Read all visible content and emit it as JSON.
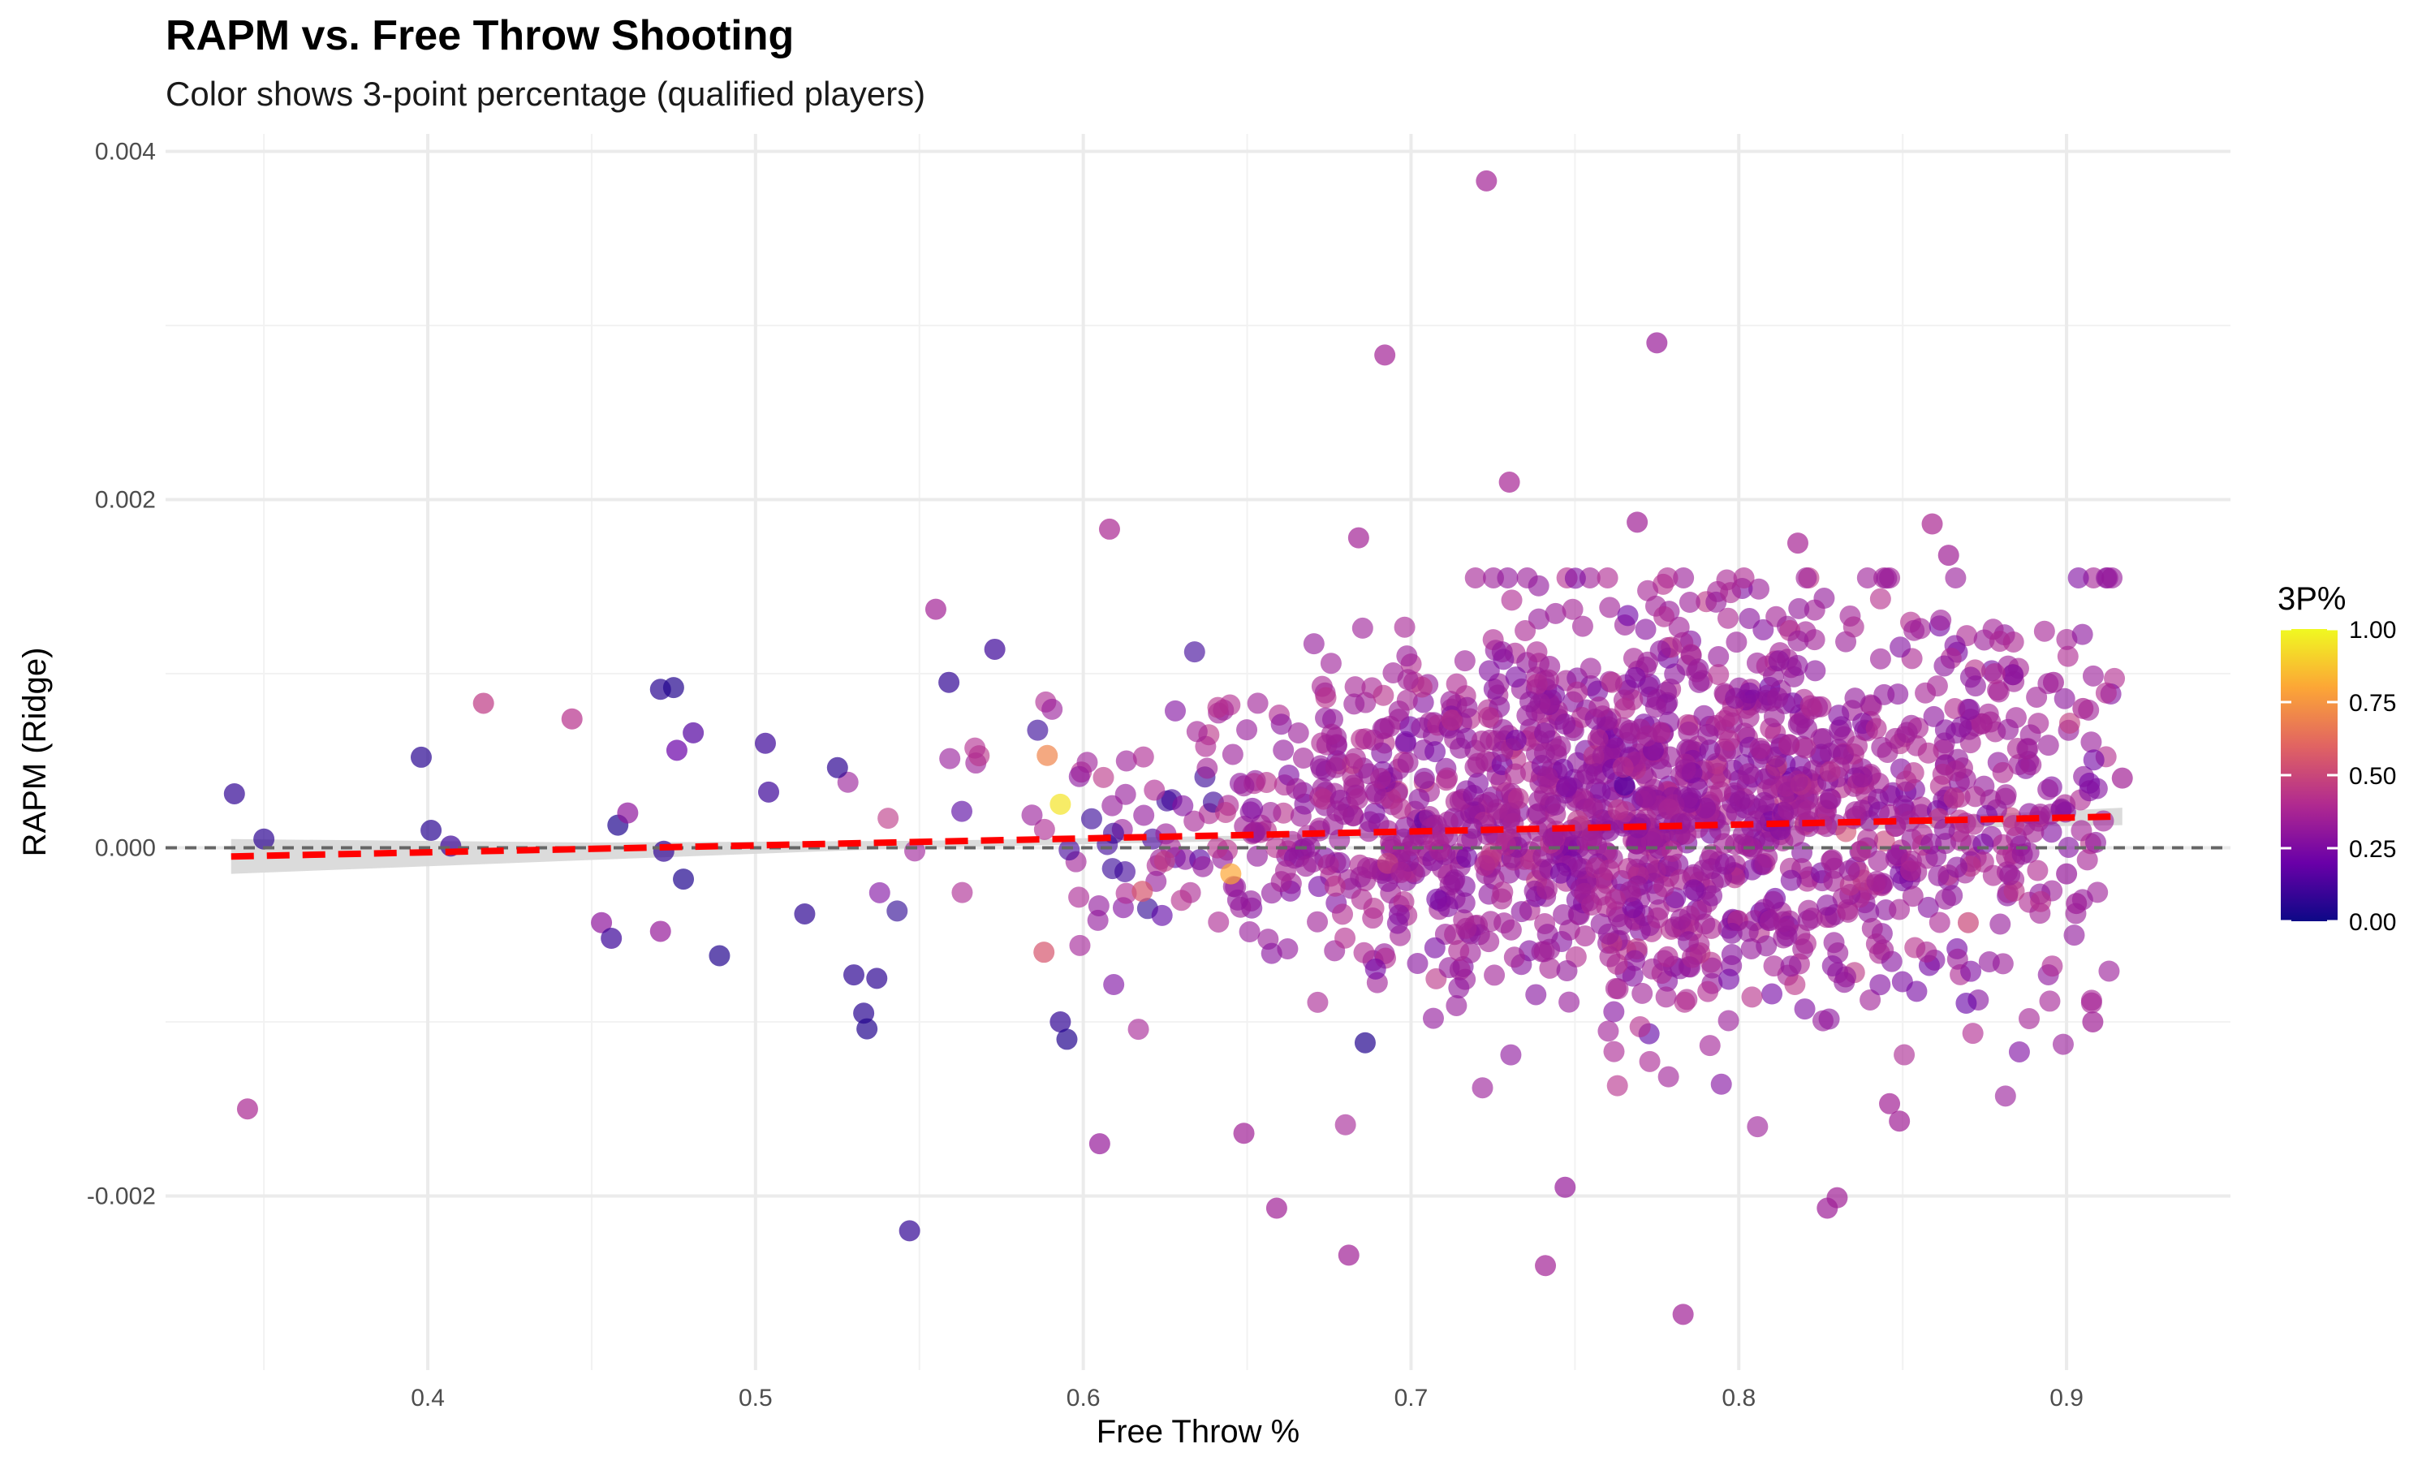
{
  "chart_data": {
    "type": "scatter",
    "title": "RAPM vs. Free Throw Shooting",
    "subtitle": "Color shows 3-point percentage (qualified players)",
    "xlabel": "Free Throw %",
    "ylabel": "RAPM (Ridge)",
    "xlim": [
      0.32,
      0.95
    ],
    "ylim": [
      -0.003,
      0.0041
    ],
    "x_ticks": [
      0.4,
      0.5,
      0.6,
      0.7,
      0.8,
      0.9
    ],
    "x_tick_labels": [
      "0.4",
      "0.5",
      "0.6",
      "0.7",
      "0.8",
      "0.9"
    ],
    "y_ticks": [
      -0.002,
      0.0,
      0.002,
      0.004
    ],
    "y_tick_labels": [
      "-0.002",
      "0.000",
      "0.002",
      "0.004"
    ],
    "grid": true,
    "reference_line": {
      "y": 0.0,
      "style": "dashed",
      "color": "#666666"
    },
    "trend_line": {
      "x": [
        0.34,
        0.917
      ],
      "y": [
        -5e-05,
        0.00018
      ],
      "style": "dashed",
      "color": "#ff0000"
    },
    "confidence_band": {
      "x": [
        0.34,
        0.45,
        0.55,
        0.65,
        0.75,
        0.85,
        0.917
      ],
      "lower": [
        -0.00015,
        -7e-05,
        0.0,
        4e-05,
        8e-05,
        0.00011,
        0.00013
      ],
      "upper": [
        5e-05,
        3e-05,
        4e-05,
        7e-05,
        0.00011,
        0.00017,
        0.00023
      ],
      "color": "#d9d9d9"
    },
    "color_scale": {
      "name": "3P%",
      "range": [
        0.0,
        1.0
      ],
      "breaks": [
        0.0,
        0.25,
        0.5,
        0.75,
        1.0
      ],
      "break_labels": [
        "0.00",
        "0.25",
        "0.50",
        "0.75",
        "1.00"
      ],
      "colormap": "plasma",
      "stops": [
        "#0d0887",
        "#6a00a8",
        "#b12a90",
        "#e16462",
        "#fca636",
        "#f0f921"
      ]
    },
    "legend_placement": "right",
    "highlight_points": [
      {
        "x": 0.723,
        "y": 0.00383,
        "c": 0.36
      },
      {
        "x": 0.775,
        "y": 0.0029,
        "c": 0.33
      },
      {
        "x": 0.692,
        "y": 0.00283,
        "c": 0.36
      },
      {
        "x": 0.73,
        "y": 0.0021,
        "c": 0.37
      },
      {
        "x": 0.859,
        "y": 0.00186,
        "c": 0.38
      },
      {
        "x": 0.769,
        "y": 0.00187,
        "c": 0.35
      },
      {
        "x": 0.608,
        "y": 0.00183,
        "c": 0.38
      },
      {
        "x": 0.684,
        "y": 0.00178,
        "c": 0.36
      },
      {
        "x": 0.864,
        "y": 0.00168,
        "c": 0.35
      },
      {
        "x": 0.818,
        "y": 0.00175,
        "c": 0.37
      },
      {
        "x": 0.555,
        "y": 0.00137,
        "c": 0.36
      },
      {
        "x": 0.417,
        "y": 0.00083,
        "c": 0.45
      },
      {
        "x": 0.444,
        "y": 0.00074,
        "c": 0.42
      },
      {
        "x": 0.341,
        "y": 0.00031,
        "c": 0.08
      },
      {
        "x": 0.398,
        "y": 0.00052,
        "c": 0.06
      },
      {
        "x": 0.35,
        "y": 5e-05,
        "c": 0.07
      },
      {
        "x": 0.401,
        "y": 0.0001,
        "c": 0.06
      },
      {
        "x": 0.407,
        "y": 1e-05,
        "c": 0.1
      },
      {
        "x": 0.471,
        "y": 0.00091,
        "c": 0.06
      },
      {
        "x": 0.475,
        "y": 0.00092,
        "c": 0.05
      },
      {
        "x": 0.481,
        "y": 0.00066,
        "c": 0.15
      },
      {
        "x": 0.476,
        "y": 0.00056,
        "c": 0.2
      },
      {
        "x": 0.458,
        "y": 0.00013,
        "c": 0.04
      },
      {
        "x": 0.461,
        "y": 0.0002,
        "c": 0.3
      },
      {
        "x": 0.472,
        "y": -2e-05,
        "c": 0.08
      },
      {
        "x": 0.478,
        "y": -0.00018,
        "c": 0.04
      },
      {
        "x": 0.453,
        "y": -0.00043,
        "c": 0.3
      },
      {
        "x": 0.456,
        "y": -0.00052,
        "c": 0.1
      },
      {
        "x": 0.471,
        "y": -0.00048,
        "c": 0.32
      },
      {
        "x": 0.489,
        "y": -0.00062,
        "c": 0.05
      },
      {
        "x": 0.345,
        "y": -0.0015,
        "c": 0.38
      },
      {
        "x": 0.503,
        "y": 0.0006,
        "c": 0.1
      },
      {
        "x": 0.504,
        "y": 0.00032,
        "c": 0.1
      },
      {
        "x": 0.515,
        "y": -0.00038,
        "c": 0.07
      },
      {
        "x": 0.525,
        "y": 0.00046,
        "c": 0.07
      },
      {
        "x": 0.533,
        "y": -0.00095,
        "c": 0.06
      },
      {
        "x": 0.534,
        "y": -0.00104,
        "c": 0.05
      },
      {
        "x": 0.53,
        "y": -0.00073,
        "c": 0.07
      },
      {
        "x": 0.537,
        "y": -0.00075,
        "c": 0.07
      },
      {
        "x": 0.547,
        "y": -0.0022,
        "c": 0.08
      },
      {
        "x": 0.573,
        "y": 0.00114,
        "c": 0.1
      },
      {
        "x": 0.559,
        "y": 0.00095,
        "c": 0.08
      },
      {
        "x": 0.593,
        "y": -0.001,
        "c": 0.08
      },
      {
        "x": 0.595,
        "y": -0.0011,
        "c": 0.05
      },
      {
        "x": 0.605,
        "y": -0.0017,
        "c": 0.32
      },
      {
        "x": 0.649,
        "y": -0.00164,
        "c": 0.35
      },
      {
        "x": 0.659,
        "y": -0.00207,
        "c": 0.35
      },
      {
        "x": 0.681,
        "y": -0.00234,
        "c": 0.35
      },
      {
        "x": 0.741,
        "y": -0.0024,
        "c": 0.36
      },
      {
        "x": 0.783,
        "y": -0.00268,
        "c": 0.35
      },
      {
        "x": 0.747,
        "y": -0.00195,
        "c": 0.32
      },
      {
        "x": 0.827,
        "y": -0.00207,
        "c": 0.34
      },
      {
        "x": 0.83,
        "y": -0.00201,
        "c": 0.35
      },
      {
        "x": 0.908,
        "y": -0.001,
        "c": 0.35
      },
      {
        "x": 0.846,
        "y": -0.00147,
        "c": 0.36
      },
      {
        "x": 0.849,
        "y": -0.00157,
        "c": 0.35
      },
      {
        "x": 0.686,
        "y": -0.00112,
        "c": 0.05
      },
      {
        "x": 0.593,
        "y": 0.00025,
        "c": 0.95
      },
      {
        "x": 0.589,
        "y": 0.00053,
        "c": 0.7
      },
      {
        "x": 0.645,
        "y": -0.00015,
        "c": 0.8
      },
      {
        "x": 0.588,
        "y": -0.0006,
        "c": 0.55
      },
      {
        "x": 0.618,
        "y": -0.00025,
        "c": 0.55
      },
      {
        "x": 0.87,
        "y": -0.00043,
        "c": 0.5
      },
      {
        "x": 0.896,
        "y": 0.00095,
        "c": 0.35
      },
      {
        "x": 0.905,
        "y": 0.0008,
        "c": 0.38
      },
      {
        "x": 0.917,
        "y": 0.0004,
        "c": 0.36
      },
      {
        "x": 0.9,
        "y": -0.00015,
        "c": 0.32
      },
      {
        "x": 0.903,
        "y": -0.00032,
        "c": 0.34
      }
    ],
    "bulk_summary": {
      "n_points": 1650,
      "x_mean": 0.77,
      "x_sd": 0.075,
      "x_range": [
        0.52,
        0.915
      ],
      "y_sd": 0.00055,
      "c_mean": 0.34,
      "c_sd": 0.05
    }
  }
}
